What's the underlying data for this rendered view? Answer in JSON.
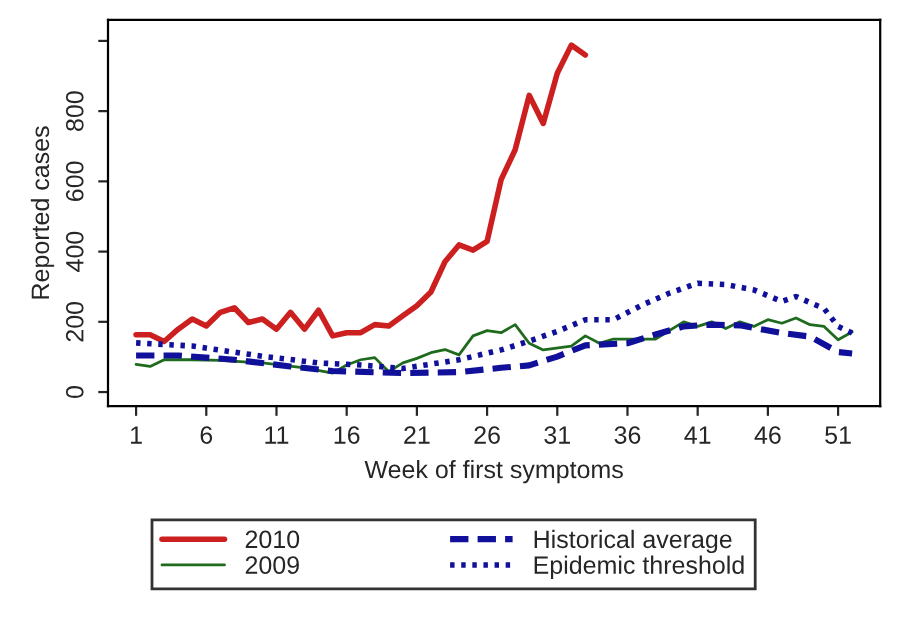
{
  "chart_data": {
    "type": "line",
    "xlabel": "Week of first symptoms",
    "ylabel": "Reported cases",
    "xlim": [
      -1,
      54
    ],
    "xticks": [
      1,
      6,
      11,
      16,
      21,
      26,
      31,
      36,
      41,
      46,
      51
    ],
    "ylim": [
      -40,
      1060
    ],
    "yticks": [
      0,
      200,
      400,
      600,
      800,
      {
        "value": 1000,
        "label": null
      }
    ],
    "grid": false,
    "legend": "bottom",
    "marker": "none",
    "series": [
      {
        "name": "2010",
        "color": "#cc2020",
        "line_style": "solid",
        "x": [
          1,
          2,
          3,
          4,
          5,
          6,
          7,
          8,
          9,
          10,
          11,
          12,
          13,
          14,
          15,
          16,
          17,
          18,
          19,
          20,
          21,
          22,
          23,
          24,
          25,
          26,
          27,
          28,
          29,
          30,
          31,
          32,
          33
        ],
        "values": [
          163,
          163,
          144,
          179,
          208,
          188,
          227,
          240,
          198,
          208,
          179,
          227,
          179,
          233,
          160,
          169,
          169,
          192,
          188,
          217,
          246,
          285,
          371,
          419,
          404,
          429,
          605,
          690,
          845,
          765,
          908,
          988,
          960
        ]
      },
      {
        "name": "2009",
        "color": "#1e6b1e",
        "line_style": "solid",
        "x": [
          1,
          2,
          3,
          5,
          7,
          10,
          13,
          15,
          16,
          17,
          18,
          19,
          20,
          21,
          22,
          23,
          24,
          25,
          26,
          27,
          28,
          29,
          30,
          32,
          33,
          34,
          35,
          38,
          40,
          41,
          42,
          43,
          44,
          45,
          46,
          47,
          48,
          49,
          50,
          51,
          52
        ],
        "values": [
          79,
          73,
          92,
          92,
          90,
          83,
          69,
          54,
          77,
          92,
          98,
          58,
          83,
          96,
          112,
          121,
          106,
          160,
          175,
          169,
          192,
          139,
          120,
          131,
          160,
          139,
          151,
          151,
          200,
          187,
          200,
          181,
          200,
          187,
          206,
          196,
          211,
          192,
          187,
          149,
          171
        ]
      },
      {
        "name": "Historical average",
        "color": "#10109a",
        "line_style": "dashed",
        "x": [
          1,
          4,
          8,
          12,
          15,
          20,
          24,
          27,
          29,
          31,
          33,
          36,
          38,
          40,
          42,
          44,
          47,
          49,
          51,
          52
        ],
        "values": [
          104,
          104,
          92,
          73,
          60,
          54,
          57,
          69,
          76,
          101,
          133,
          139,
          164,
          187,
          192,
          190,
          168,
          158,
          114,
          110
        ]
      },
      {
        "name": "Epidemic threshold",
        "color": "#10109a",
        "line_style": "dotted",
        "x": [
          1,
          5,
          10,
          14,
          17,
          20,
          24,
          27,
          29,
          31,
          33,
          35,
          37,
          39,
          41,
          43,
          45,
          47,
          48,
          50,
          51,
          52
        ],
        "values": [
          140,
          131,
          102,
          83,
          77,
          67,
          92,
          120,
          145,
          173,
          206,
          206,
          247,
          282,
          310,
          306,
          291,
          258,
          272,
          238,
          187,
          168
        ]
      }
    ]
  }
}
